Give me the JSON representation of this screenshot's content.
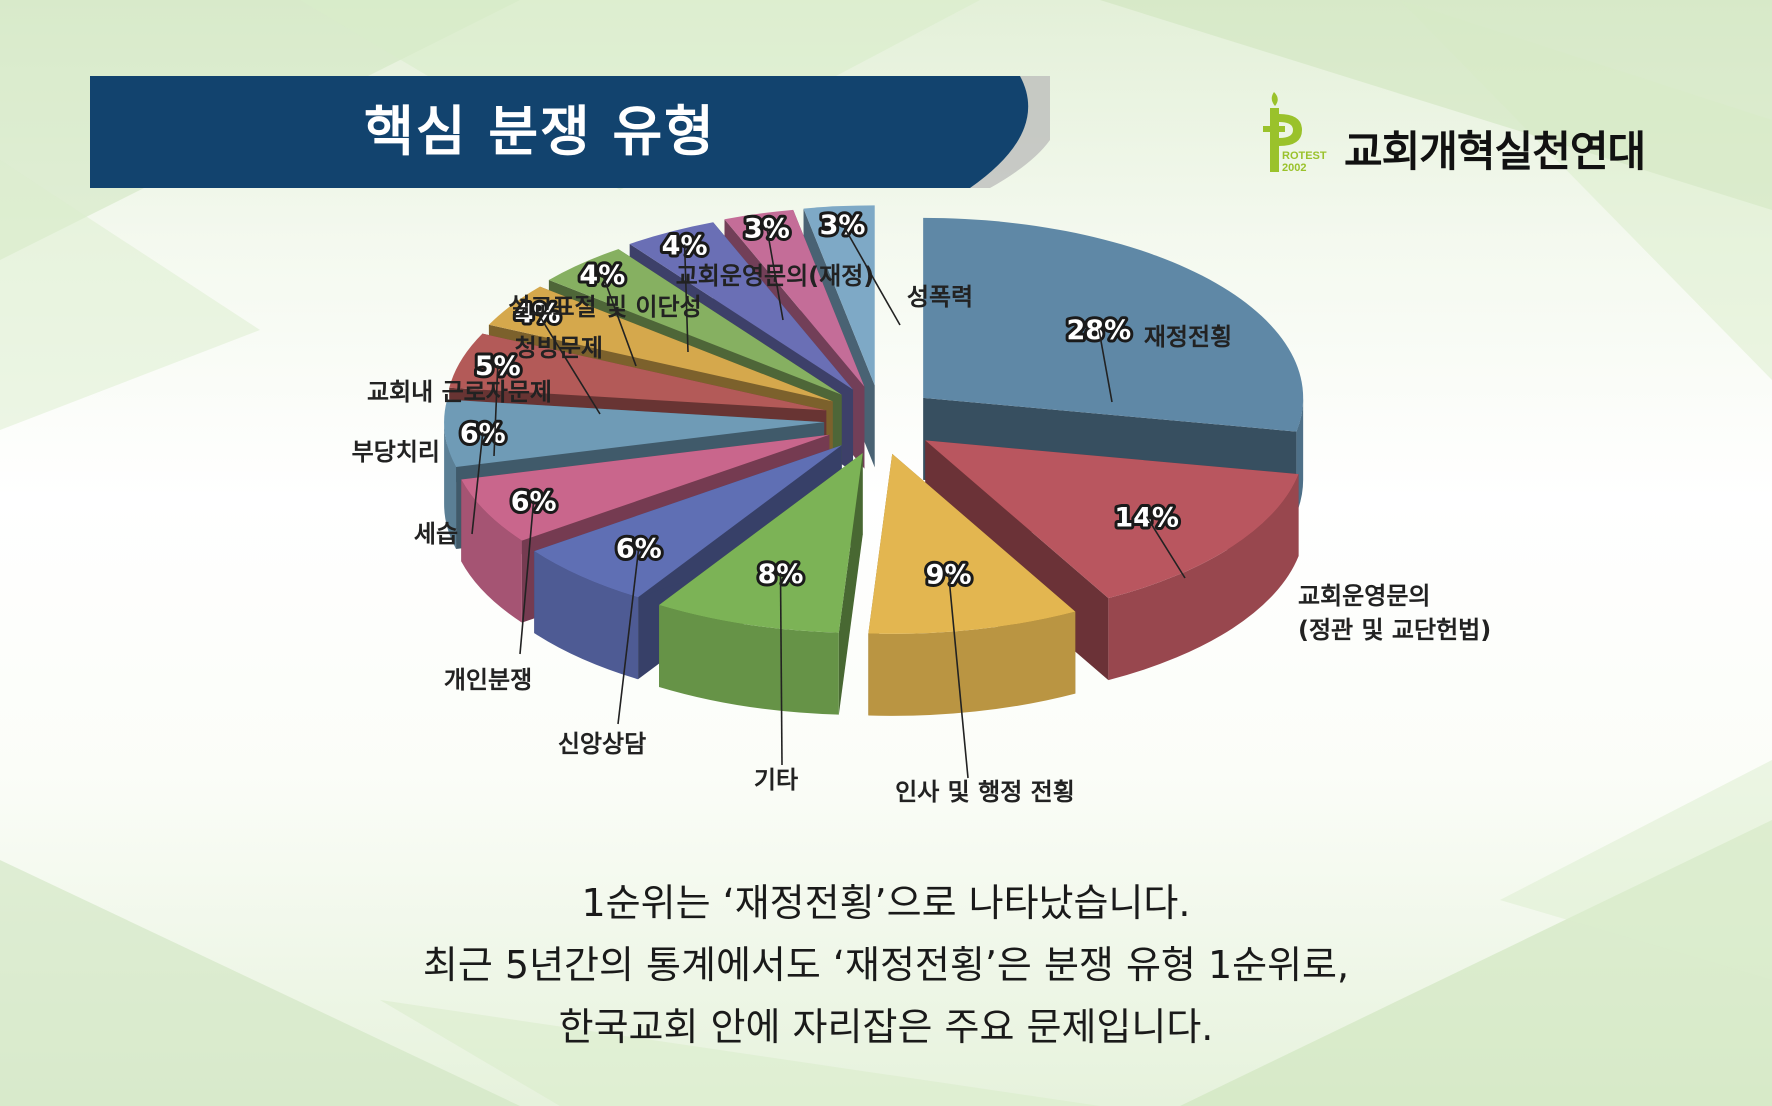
{
  "title": "핵심 분쟁 유형",
  "logo": {
    "name": "교회개혁실천연대",
    "sub_line1": "ROTEST",
    "sub_line2": "2002"
  },
  "colors": {
    "banner": "#12436e",
    "accent_logo": "#9ac22b"
  },
  "chart_data": {
    "type": "pie",
    "style": "3d-exploded",
    "slices": [
      {
        "label": "재정전횡",
        "value": 28,
        "display": "28%",
        "color": "#5f88a6"
      },
      {
        "label": "교회운영문의\n(정관 및 교단헌법)",
        "value": 14,
        "display": "14%",
        "color": "#b9565f"
      },
      {
        "label": "인사 및 행정 전횡",
        "value": 9,
        "display": "9%",
        "color": "#e3b650"
      },
      {
        "label": "기타",
        "value": 8,
        "display": "8%",
        "color": "#7cb356"
      },
      {
        "label": "신앙상담",
        "value": 6,
        "display": "6%",
        "color": "#5f6fb4"
      },
      {
        "label": "개인분쟁",
        "value": 6,
        "display": "6%",
        "color": "#c9668c"
      },
      {
        "label": "세습",
        "value": 6,
        "display": "6%",
        "color": "#6f9bb6"
      },
      {
        "label": "부당치리",
        "value": 5,
        "display": "5%",
        "color": "#b35a58"
      },
      {
        "label": "교회내 근로자문제",
        "value": 4,
        "display": "4%",
        "color": "#d5a84c"
      },
      {
        "label": "청빙문제",
        "value": 4,
        "display": "4%",
        "color": "#86b061"
      },
      {
        "label": "설교표절 및 이단성",
        "value": 4,
        "display": "4%",
        "color": "#6a6fb5"
      },
      {
        "label": "교회운영문의(재정)",
        "value": 3,
        "display": "3%",
        "color": "#c46d98"
      },
      {
        "label": "성폭력",
        "value": 3,
        "display": "3%",
        "color": "#7ea9c6"
      }
    ]
  },
  "caption": {
    "line1": "1순위는 ‘재정전횡’으로 나타났습니다.",
    "line2": "최근 5년간의 통계에서도 ‘재정전횡’은 분쟁 유형 1순위로,",
    "line3": "한국교회 안에 자리잡은 주요 문제입니다."
  }
}
